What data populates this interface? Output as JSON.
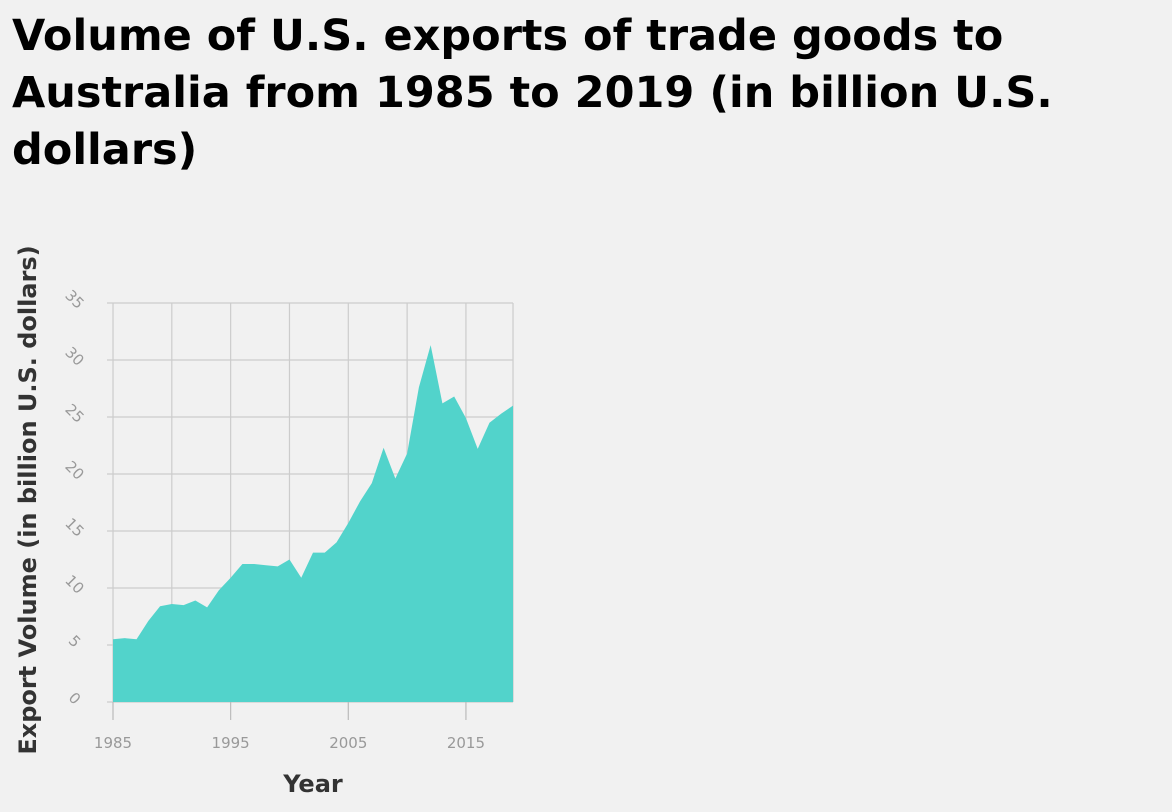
{
  "chart_data": {
    "type": "area",
    "title": "Volume of U.S. exports of trade goods to Australia from 1985 to 2019 (in billion U.S. dollars)",
    "xlabel": "Year",
    "ylabel": "Export Volume (in billion U.S. dollars)",
    "xlim": [
      1985,
      2019
    ],
    "ylim": [
      0,
      35
    ],
    "xticks": [
      1985,
      1995,
      2005,
      2015
    ],
    "yticks": [
      0,
      5,
      10,
      15,
      20,
      25,
      30,
      35
    ],
    "grid": true,
    "legend": "none",
    "color": "#52d3cb",
    "x": [
      1985,
      1986,
      1987,
      1988,
      1989,
      1990,
      1991,
      1992,
      1993,
      1994,
      1995,
      1996,
      1997,
      1998,
      1999,
      2000,
      2001,
      2002,
      2003,
      2004,
      2005,
      2006,
      2007,
      2008,
      2009,
      2010,
      2011,
      2012,
      2013,
      2014,
      2015,
      2016,
      2017,
      2018,
      2019
    ],
    "y": [
      5.5,
      5.6,
      5.5,
      7.1,
      8.4,
      8.6,
      8.5,
      8.9,
      8.3,
      9.8,
      10.9,
      12.1,
      12.1,
      12.0,
      11.9,
      12.5,
      10.9,
      13.1,
      13.1,
      14.0,
      15.7,
      17.6,
      19.2,
      22.3,
      19.6,
      21.8,
      27.6,
      31.3,
      26.2,
      26.8,
      24.9,
      22.2,
      24.5,
      25.3,
      26.0
    ]
  }
}
